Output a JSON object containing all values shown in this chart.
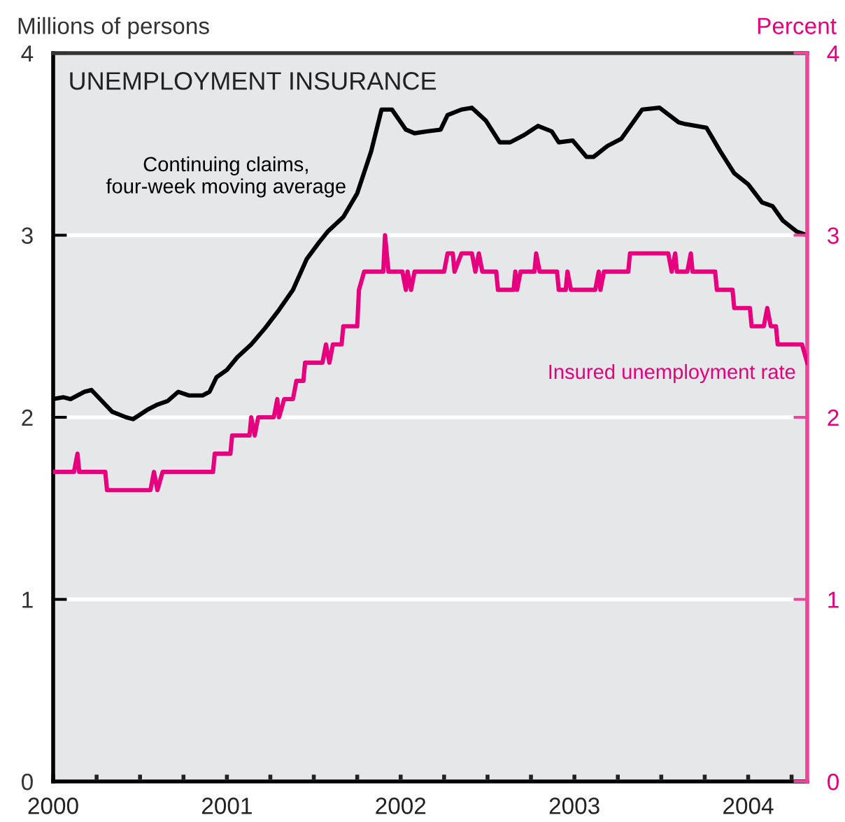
{
  "chart_data": {
    "type": "line",
    "title": "UNEMPLOYMENT INSURANCE",
    "ylabel": "Millions of persons",
    "y2label": "Percent",
    "xlim": [
      2000,
      2004.34
    ],
    "xticks": [
      2000,
      {
        "value": 2000.25,
        "label": null
      },
      {
        "value": 2000.5,
        "label": null
      },
      {
        "value": 2000.75,
        "label": null
      },
      2001,
      {
        "value": 2001.25,
        "label": null
      },
      {
        "value": 2001.5,
        "label": null
      },
      {
        "value": 2001.75,
        "label": null
      },
      2002,
      {
        "value": 2002.25,
        "label": null
      },
      {
        "value": 2002.5,
        "label": null
      },
      {
        "value": 2002.75,
        "label": null
      },
      2003,
      {
        "value": 2003.25,
        "label": null
      },
      {
        "value": 2003.5,
        "label": null
      },
      {
        "value": 2003.75,
        "label": null
      },
      2004,
      {
        "value": 2004.25,
        "label": null
      }
    ],
    "ylim": [
      0,
      4
    ],
    "yticks": [
      0,
      1,
      2,
      3,
      4
    ],
    "y2lim": [
      0,
      4
    ],
    "y2ticks": [
      0,
      1,
      2,
      3,
      4
    ],
    "grid": "y",
    "legend": false,
    "series": [
      {
        "name": "Continuing claims,\nfour-week moving average",
        "color": "#000000",
        "x": [
          2000.0,
          2000.06,
          2000.1,
          2000.18,
          2000.22,
          2000.3,
          2000.34,
          2000.42,
          2000.46,
          2000.54,
          2000.6,
          2000.66,
          2000.72,
          2000.78,
          2000.86,
          2000.9,
          2000.94,
          2001.0,
          2001.06,
          2001.14,
          2001.22,
          2001.3,
          2001.38,
          2001.46,
          2001.53,
          2001.58,
          2001.67,
          2001.75,
          2001.83,
          2001.89,
          2001.95,
          2002.03,
          2002.08,
          2002.15,
          2002.23,
          2002.27,
          2002.35,
          2002.41,
          2002.49,
          2002.57,
          2002.63,
          2002.71,
          2002.79,
          2002.87,
          2002.91,
          2002.99,
          2003.07,
          2003.11,
          2003.19,
          2003.27,
          2003.39,
          2003.49,
          2003.6,
          2003.64,
          2003.76,
          2003.84,
          2003.92,
          2004.0,
          2004.08,
          2004.14,
          2004.2,
          2004.28,
          2004.34
        ],
        "values": [
          2.1,
          2.11,
          2.1,
          2.14,
          2.15,
          2.07,
          2.03,
          2.0,
          1.99,
          2.04,
          2.07,
          2.09,
          2.14,
          2.12,
          2.12,
          2.14,
          2.22,
          2.26,
          2.33,
          2.4,
          2.49,
          2.59,
          2.7,
          2.87,
          2.96,
          3.02,
          3.1,
          3.23,
          3.46,
          3.69,
          3.69,
          3.58,
          3.56,
          3.57,
          3.58,
          3.66,
          3.69,
          3.7,
          3.63,
          3.51,
          3.51,
          3.55,
          3.6,
          3.57,
          3.51,
          3.52,
          3.43,
          3.43,
          3.49,
          3.53,
          3.69,
          3.7,
          3.62,
          3.61,
          3.59,
          3.46,
          3.34,
          3.28,
          3.18,
          3.16,
          3.08,
          3.02,
          3.0
        ]
      },
      {
        "name": "Insured unemployment rate",
        "color": "#e6007e",
        "axis": "y2",
        "x": [
          2000.0,
          2000.12,
          2000.14,
          2000.15,
          2000.3,
          2000.31,
          2000.56,
          2000.58,
          2000.6,
          2000.63,
          2000.92,
          2000.93,
          2001.02,
          2001.03,
          2001.13,
          2001.14,
          2001.16,
          2001.18,
          2001.27,
          2001.29,
          2001.3,
          2001.33,
          2001.38,
          2001.4,
          2001.44,
          2001.45,
          2001.55,
          2001.57,
          2001.59,
          2001.61,
          2001.66,
          2001.67,
          2001.75,
          2001.76,
          2001.79,
          2001.9,
          2001.91,
          2001.93,
          2002.01,
          2002.03,
          2002.04,
          2002.06,
          2002.08,
          2002.25,
          2002.27,
          2002.3,
          2002.31,
          2002.35,
          2002.41,
          2002.43,
          2002.45,
          2002.47,
          2002.55,
          2002.56,
          2002.65,
          2002.66,
          2002.67,
          2002.69,
          2002.77,
          2002.78,
          2002.8,
          2002.9,
          2002.91,
          2002.95,
          2002.96,
          2002.98,
          2003.12,
          2003.14,
          2003.15,
          2003.17,
          2003.31,
          2003.32,
          2003.54,
          2003.56,
          2003.58,
          2003.59,
          2003.65,
          2003.67,
          2003.68,
          2003.81,
          2003.82,
          2003.91,
          2003.92,
          2004.01,
          2004.02,
          2004.09,
          2004.11,
          2004.13,
          2004.16,
          2004.17,
          2004.31,
          2004.34
        ],
        "values": [
          1.7,
          1.7,
          1.8,
          1.7,
          1.7,
          1.6,
          1.6,
          1.7,
          1.6,
          1.7,
          1.7,
          1.8,
          1.8,
          1.9,
          1.9,
          2.0,
          1.9,
          2.0,
          2.0,
          2.1,
          2.0,
          2.1,
          2.1,
          2.2,
          2.2,
          2.3,
          2.3,
          2.4,
          2.3,
          2.4,
          2.4,
          2.5,
          2.5,
          2.7,
          2.8,
          2.8,
          3.0,
          2.8,
          2.8,
          2.7,
          2.8,
          2.7,
          2.8,
          2.8,
          2.9,
          2.9,
          2.8,
          2.9,
          2.9,
          2.8,
          2.9,
          2.8,
          2.8,
          2.7,
          2.7,
          2.8,
          2.7,
          2.8,
          2.8,
          2.9,
          2.8,
          2.8,
          2.7,
          2.7,
          2.8,
          2.7,
          2.7,
          2.8,
          2.7,
          2.8,
          2.8,
          2.9,
          2.9,
          2.8,
          2.9,
          2.8,
          2.8,
          2.9,
          2.8,
          2.8,
          2.7,
          2.7,
          2.6,
          2.6,
          2.5,
          2.5,
          2.6,
          2.5,
          2.5,
          2.4,
          2.4,
          2.3
        ]
      }
    ]
  }
}
